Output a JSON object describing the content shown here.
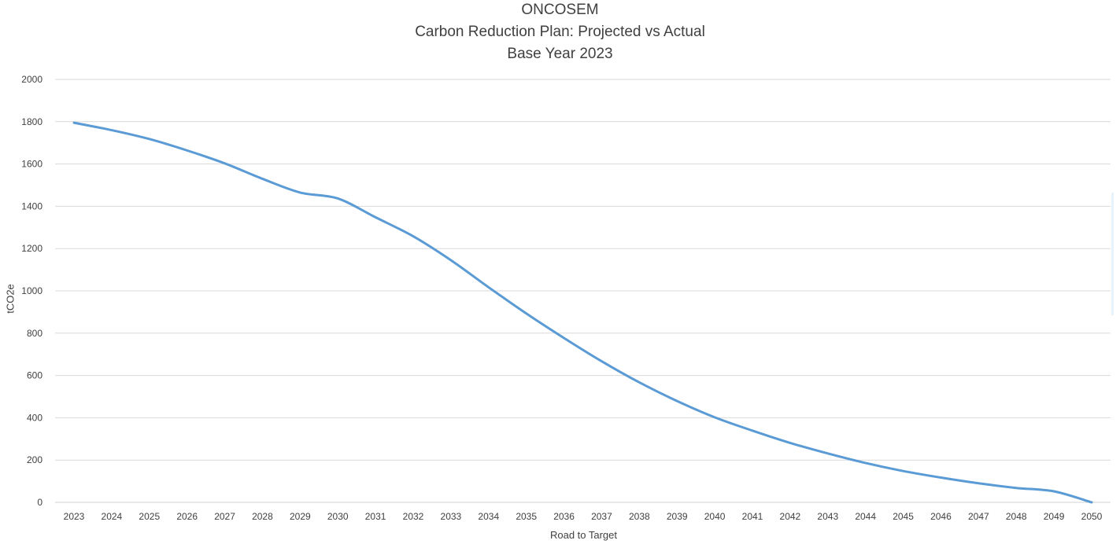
{
  "chart_data": {
    "type": "line",
    "title": "ONCOSEM",
    "subtitle": "Carbon Reduction Plan: Projected vs Actual",
    "subtitle2": "Base Year 2023",
    "xlabel": "Road to Target",
    "ylabel": "tCO2e",
    "ylim": [
      0,
      2000
    ],
    "yticks": [
      0,
      200,
      400,
      600,
      800,
      1000,
      1200,
      1400,
      1600,
      1800,
      2000
    ],
    "grid": true,
    "categories": [
      "2023",
      "2024",
      "2025",
      "2026",
      "2027",
      "2028",
      "2029",
      "2030",
      "2031",
      "2032",
      "2033",
      "2034",
      "2035",
      "2036",
      "2037",
      "2038",
      "2039",
      "2040",
      "2041",
      "2042",
      "2043",
      "2044",
      "2045",
      "2046",
      "2047",
      "2048",
      "2049",
      "2050"
    ],
    "series": [
      {
        "color": "#5b9bd5",
        "values": [
          1795,
          1760,
          1718,
          1664,
          1603,
          1530,
          1465,
          1437,
          1348,
          1258,
          1145,
          1017,
          893,
          777,
          667,
          567,
          479,
          402,
          339,
          281,
          231,
          186,
          148,
          117,
          90,
          68,
          52,
          0
        ]
      }
    ]
  }
}
